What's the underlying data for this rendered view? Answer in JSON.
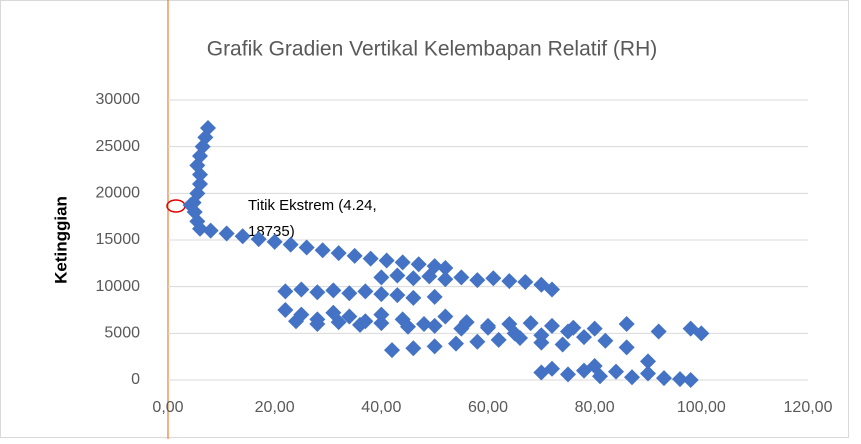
{
  "chart_data": {
    "type": "scatter",
    "title": "Grafik Gradien Vertikal Kelembapan Relatif (RH)",
    "y_label": "Ketinggian",
    "annotation_lines": [
      "Titik Ekstrem (4.24,",
      "18735)"
    ],
    "color": "#4472c4",
    "grid": true,
    "xlim": [
      0,
      120
    ],
    "xticks": [
      {
        "value": 0,
        "label": "0,00"
      },
      {
        "value": 20,
        "label": "20,00"
      },
      {
        "value": 40,
        "label": "40,00"
      },
      {
        "value": 60,
        "label": "60,00"
      },
      {
        "value": 80,
        "label": "80,00"
      },
      {
        "value": 100,
        "label": "100,00"
      },
      {
        "value": 120,
        "label": "120,00"
      }
    ],
    "ylim": [
      0,
      30000
    ],
    "yticks": [
      0,
      5000,
      10000,
      15000,
      20000,
      25000,
      30000
    ],
    "x": [
      7.5,
      7,
      6.5,
      6,
      5.5,
      6,
      6,
      5.5,
      4.8,
      4.24,
      5,
      5.5,
      6,
      8,
      11,
      14,
      17,
      20,
      23,
      26,
      29,
      32,
      35,
      38,
      41,
      44,
      47,
      50,
      52,
      40,
      43,
      46,
      49,
      52,
      55,
      58,
      61,
      64,
      67,
      70,
      72,
      22,
      25,
      28,
      31,
      34,
      37,
      40,
      43,
      46,
      50,
      22,
      25,
      28,
      31,
      34,
      37,
      40,
      44,
      48,
      52,
      56,
      60,
      64,
      68,
      72,
      76,
      80,
      86,
      92,
      98,
      24,
      28,
      32,
      36,
      40,
      45,
      50,
      55,
      60,
      65,
      70,
      75,
      42,
      46,
      50,
      54,
      58,
      62,
      66,
      70,
      74,
      78,
      82,
      86,
      90,
      100,
      70,
      72,
      75,
      78,
      81,
      84,
      87,
      90,
      93,
      96,
      98,
      80
    ],
    "y": [
      27000,
      26000,
      25000,
      24000,
      23000,
      22000,
      21000,
      20000,
      19000,
      18735,
      18000,
      17000,
      16200,
      16000,
      15700,
      15400,
      15100,
      14800,
      14500,
      14200,
      13900,
      13600,
      13300,
      13000,
      12800,
      12600,
      12400,
      12200,
      12000,
      11000,
      11200,
      10900,
      11100,
      10800,
      11000,
      10700,
      10900,
      10600,
      10500,
      10200,
      9700,
      9500,
      9700,
      9400,
      9600,
      9300,
      9500,
      9200,
      9100,
      8800,
      8900,
      7500,
      7000,
      6500,
      7200,
      6800,
      6300,
      7000,
      6500,
      6000,
      6800,
      6200,
      5800,
      6000,
      6100,
      5800,
      5600,
      5500,
      6000,
      5200,
      5500,
      6300,
      6000,
      6200,
      5900,
      6100,
      5700,
      5800,
      5500,
      5600,
      5000,
      4800,
      5200,
      3200,
      3400,
      3600,
      3900,
      4100,
      4300,
      4500,
      4000,
      3800,
      4600,
      4200,
      3500,
      2000,
      5000,
      800,
      1200,
      600,
      1000,
      400,
      900,
      300,
      700,
      200,
      100,
      0,
      1500
    ]
  }
}
